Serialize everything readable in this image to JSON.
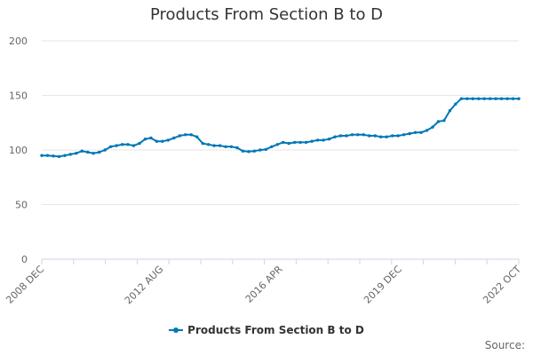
{
  "chart_data": {
    "type": "line",
    "title": "Products From Section B to D",
    "xlabel": "",
    "ylabel": "",
    "ylim": [
      0,
      200
    ],
    "yticks": [
      0,
      50,
      100,
      150,
      200
    ],
    "x_tick_labels": [
      "2008 DEC",
      "2012 AUG",
      "2016 APR",
      "2019 DEC",
      "2022 OCT"
    ],
    "x_start": "2008-12",
    "x_end": "2022-10",
    "grid": true,
    "legend_position": "bottom-center",
    "series": [
      {
        "name": "Products From Section B to D",
        "color": "#0077b6",
        "x": [
          "2008-12",
          "2009-02",
          "2009-04",
          "2009-06",
          "2009-08",
          "2009-10",
          "2009-12",
          "2010-02",
          "2010-04",
          "2010-06",
          "2010-08",
          "2010-10",
          "2010-12",
          "2011-02",
          "2011-04",
          "2011-06",
          "2011-08",
          "2011-10",
          "2011-12",
          "2012-02",
          "2012-04",
          "2012-06",
          "2012-08",
          "2012-10",
          "2012-12",
          "2013-02",
          "2013-04",
          "2013-06",
          "2013-08",
          "2013-10",
          "2013-12",
          "2014-02",
          "2014-04",
          "2014-06",
          "2014-08",
          "2014-10",
          "2014-12",
          "2015-02",
          "2015-04",
          "2015-06",
          "2015-08",
          "2015-10",
          "2015-12",
          "2016-02",
          "2016-04",
          "2016-06",
          "2016-08",
          "2016-10",
          "2016-12",
          "2017-02",
          "2017-04",
          "2017-06",
          "2017-08",
          "2017-10",
          "2017-12",
          "2018-02",
          "2018-04",
          "2018-06",
          "2018-08",
          "2018-10",
          "2018-12",
          "2019-02",
          "2019-04",
          "2019-06",
          "2019-08",
          "2019-10",
          "2019-12",
          "2020-02",
          "2020-04",
          "2020-06",
          "2020-08",
          "2020-10",
          "2020-12",
          "2021-02",
          "2021-04",
          "2021-06",
          "2021-08",
          "2021-10",
          "2021-12",
          "2022-02",
          "2022-04",
          "2022-06",
          "2022-08",
          "2022-10"
        ],
        "values": [
          95,
          95,
          94.5,
          94,
          95,
          96,
          97,
          99,
          98,
          97,
          98,
          100,
          103,
          104,
          105,
          105,
          104,
          106,
          110,
          111,
          108,
          108,
          109,
          111,
          113,
          114,
          114,
          112,
          106,
          105,
          104,
          104,
          103,
          103,
          102,
          99,
          98.5,
          99,
          100,
          100.5,
          103,
          105,
          107,
          106,
          107,
          107,
          107,
          108,
          109,
          109,
          110,
          112,
          113,
          113,
          114,
          114,
          114,
          113,
          113,
          112,
          112,
          113,
          113,
          114,
          115,
          116,
          116,
          118,
          121,
          126,
          127,
          136,
          142,
          147,
          147,
          147,
          147,
          147,
          147,
          147,
          147,
          147,
          147,
          147
        ]
      }
    ]
  },
  "credits": "Source:"
}
